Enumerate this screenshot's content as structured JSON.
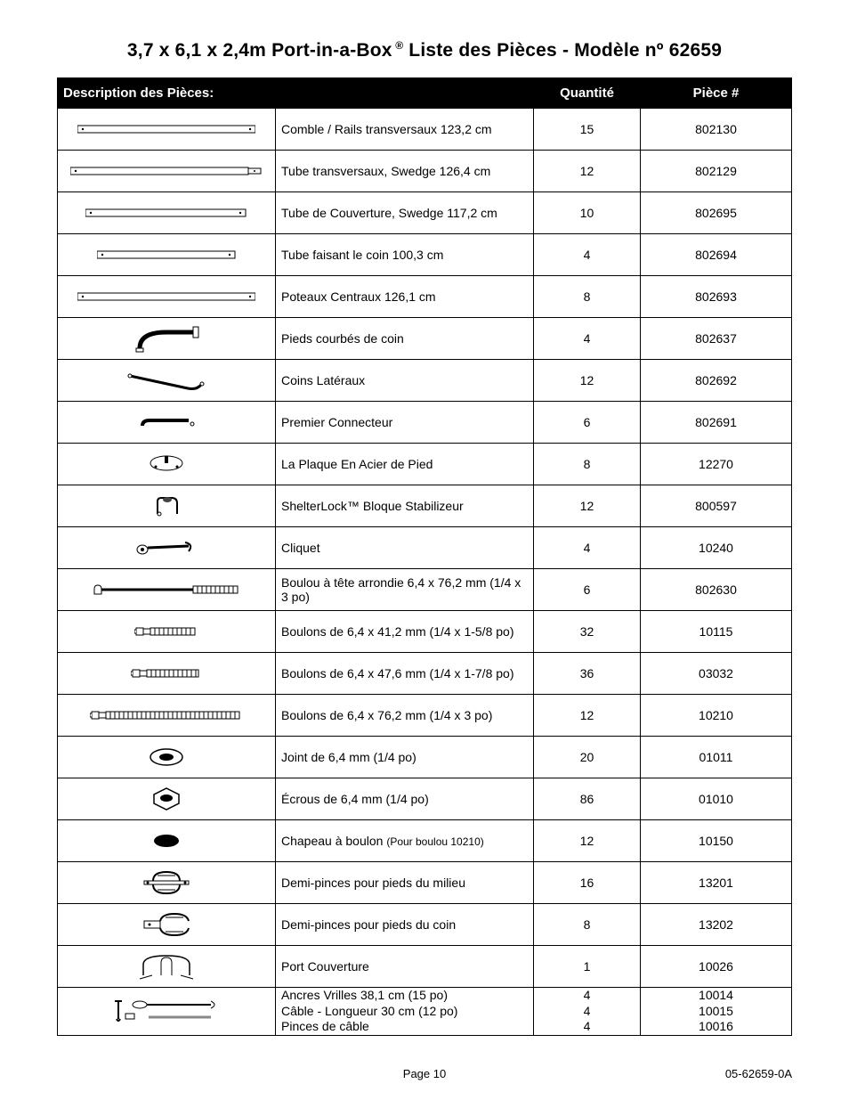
{
  "title_prefix": "3,7 x 6,1 x 2,4m  Port-in-a-Box",
  "title_suffix": " Liste des Pièces - Modèle nº 62659",
  "headers": {
    "description": "Description des Pièces:",
    "qty": "Quantité",
    "part": "Pièce #"
  },
  "footer": {
    "page": "Page 10",
    "doc": "05-62659-0A"
  },
  "rows": [
    {
      "icon": "tube-long",
      "desc": "Comble / Rails transversaux  123,2 cm",
      "qty": "15",
      "part": "802130"
    },
    {
      "icon": "tube-swedge",
      "desc": "Tube transversaux, Swedge  126,4 cm",
      "qty": "12",
      "part": "802129"
    },
    {
      "icon": "tube-med",
      "desc": "Tube de Couverture, Swedge  117,2 cm",
      "qty": "10",
      "part": "802695"
    },
    {
      "icon": "tube-short",
      "desc": "Tube faisant le coin 100,3 cm",
      "qty": "4",
      "part": "802694"
    },
    {
      "icon": "tube-long",
      "desc": "Poteaux Centraux 126,1 cm",
      "qty": "8",
      "part": "802693"
    },
    {
      "icon": "foot-curved",
      "desc": "Pieds courbés de coin",
      "qty": "4",
      "part": "802637"
    },
    {
      "icon": "side-corner",
      "desc": "Coins Latéraux",
      "qty": "12",
      "part": "802692"
    },
    {
      "icon": "connector",
      "desc": "Premier Connecteur",
      "qty": "6",
      "part": "802691"
    },
    {
      "icon": "foot-plate",
      "desc": "La Plaque En Acier de Pied",
      "qty": "8",
      "part": "12270"
    },
    {
      "icon": "shelterlock",
      "desc": "ShelterLock™ Bloque Stabilizeur",
      "qty": "12",
      "part": "800597"
    },
    {
      "icon": "ratchet",
      "desc": "Cliquet",
      "qty": "4",
      "part": "10240"
    },
    {
      "icon": "carriage-bolt",
      "desc": "Boulou à tête arrondie 6,4 x 76,2 mm (1/4 x 3 po)",
      "qty": "6",
      "part": "802630"
    },
    {
      "icon": "bolt-short",
      "desc": "Boulons de 6,4 x 41,2 mm (1/4 x 1-5/8 po)",
      "qty": "32",
      "part": "10115"
    },
    {
      "icon": "bolt-med",
      "desc": "Boulons de 6,4 x 47,6 mm (1/4 x 1-7/8 po)",
      "qty": "36",
      "part": "03032"
    },
    {
      "icon": "bolt-long",
      "desc": "Boulons de 6,4 x 76,2 mm (1/4 x 3 po)",
      "qty": "12",
      "part": "10210"
    },
    {
      "icon": "washer",
      "desc": "Joint de 6,4 mm (1/4 po)",
      "qty": "20",
      "part": "01011"
    },
    {
      "icon": "nut",
      "desc": "Écrous de 6,4 mm (1/4 po)",
      "qty": "86",
      "part": "01010"
    },
    {
      "icon": "cap",
      "desc": "Chapeau à boulon ",
      "desc_sub": "(Pour boulou 10210)",
      "qty": "12",
      "part": "10150"
    },
    {
      "icon": "clamp-mid",
      "desc": "Demi-pinces pour pieds du milieu",
      "qty": "16",
      "part": "13201"
    },
    {
      "icon": "clamp-corner",
      "desc": "Demi-pinces pour pieds du coin",
      "qty": "8",
      "part": "13202"
    },
    {
      "icon": "cover",
      "desc": "Port Couverture",
      "qty": "1",
      "part": "10026"
    },
    {
      "icon": "anchor-kit",
      "desc_multi": [
        "Ancres Vrilles 38,1 cm (15 po)",
        "Câble - Longueur 30 cm (12 po)",
        "Pinces de câble"
      ],
      "qty_multi": [
        "4",
        "4",
        "4"
      ],
      "part_multi": [
        "10014",
        "10015",
        "10016"
      ]
    }
  ]
}
